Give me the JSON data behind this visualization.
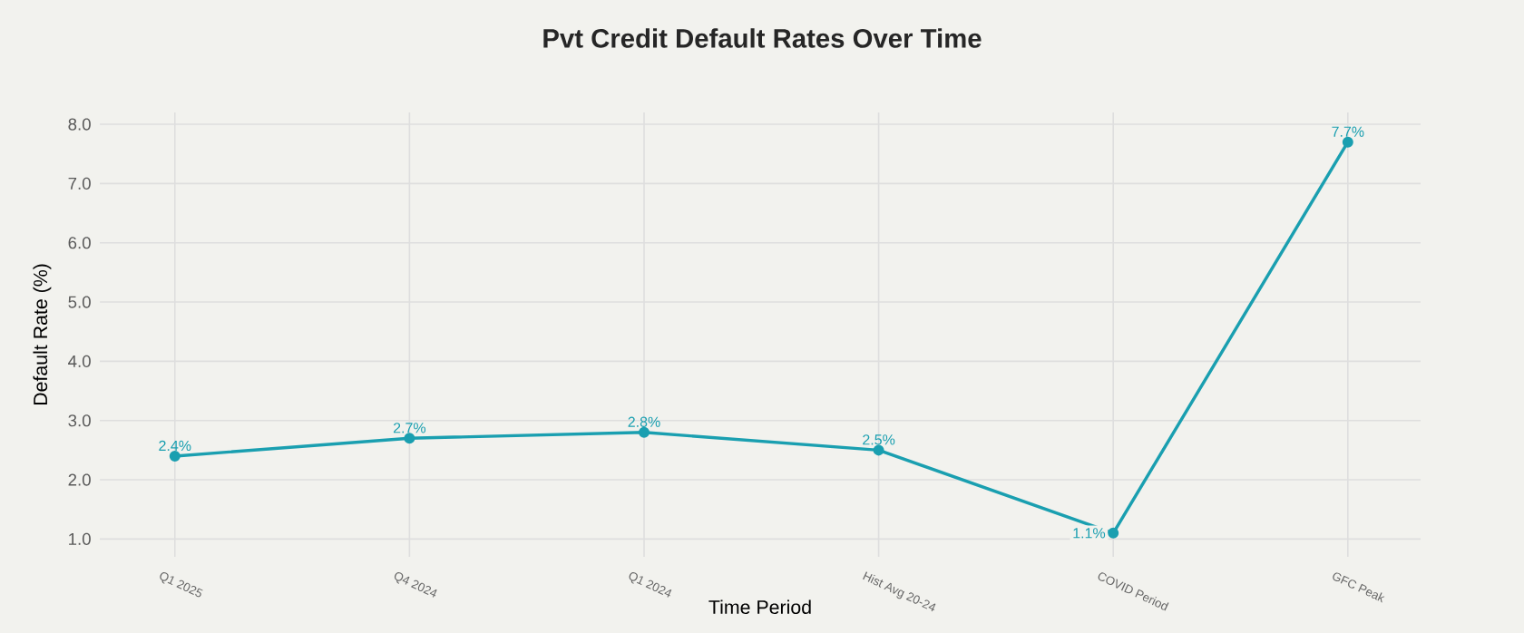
{
  "chart_data": {
    "type": "line",
    "title": "Pvt Credit Default Rates Over Time",
    "xlabel": "Time Period",
    "ylabel": "Default Rate (%)",
    "categories": [
      "Q1 2025",
      "Q4 2024",
      "Q1 2024",
      "Hist Avg 20-24",
      "COVID Period",
      "GFC Peak"
    ],
    "series": [
      {
        "color": "#1a9fb0",
        "values": [
          2.4,
          2.7,
          2.8,
          2.5,
          1.1,
          7.7
        ],
        "value_labels": [
          "2.4%",
          "2.7%",
          "2.8%",
          "2.5%",
          "1.1%",
          "7.7%"
        ]
      }
    ],
    "ylim": [
      0.7,
      8.2
    ],
    "yticks": [
      {
        "value": 1,
        "label": "1.0"
      },
      {
        "value": 2,
        "label": "2.0"
      },
      {
        "value": 3,
        "label": "3.0"
      },
      {
        "value": 4,
        "label": "4.0"
      },
      {
        "value": 5,
        "label": "5.0"
      },
      {
        "value": 6,
        "label": "6.0"
      },
      {
        "value": 7,
        "label": "7.0"
      },
      {
        "value": 8,
        "label": "8.0"
      }
    ],
    "grid": true,
    "marker": "circle",
    "line_style": "solid"
  }
}
